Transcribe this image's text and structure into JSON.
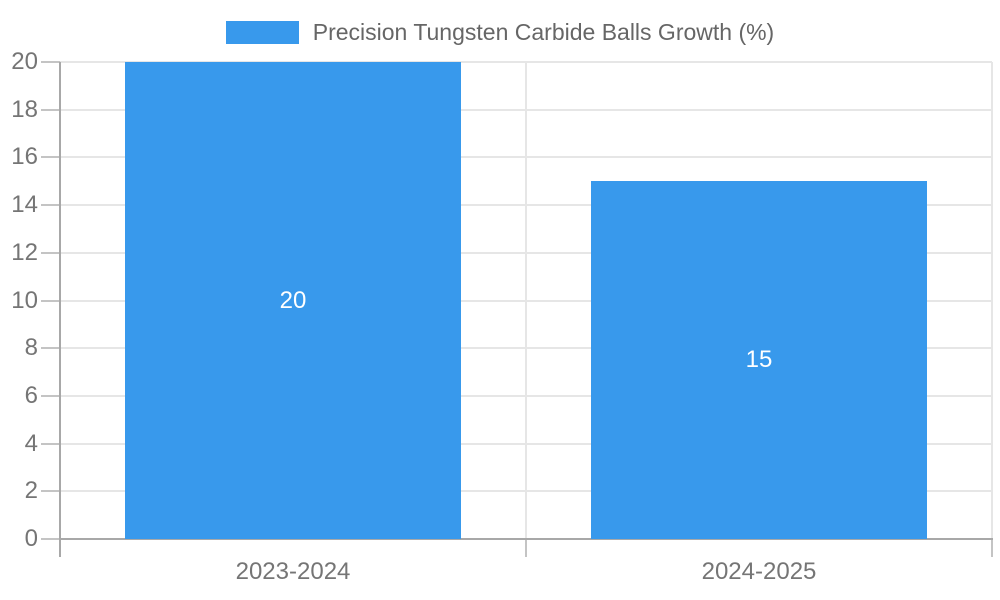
{
  "chart_data": {
    "type": "bar",
    "series_name": "Precision Tungsten Carbide Balls Growth (%)",
    "categories": [
      "2023-2024",
      "2024-2025"
    ],
    "values": [
      20,
      15
    ],
    "value_labels": [
      "20",
      "15"
    ],
    "ylim": [
      0,
      20
    ],
    "ytick_step": 2,
    "yticks": [
      0,
      2,
      4,
      6,
      8,
      10,
      12,
      14,
      16,
      18,
      20
    ],
    "grid": true,
    "legend_position": "top-center",
    "value_labels_position": "inside-center",
    "colors": {
      "bar": "#3899EC",
      "grid": "#E6E6E6",
      "axis": "#A8A8A8",
      "tick": "#C4C4C4",
      "axis_label_text": "#757575",
      "legend_text": "#666666",
      "value_label_text": "#FFFFFF",
      "background": "#FFFFFF"
    }
  }
}
